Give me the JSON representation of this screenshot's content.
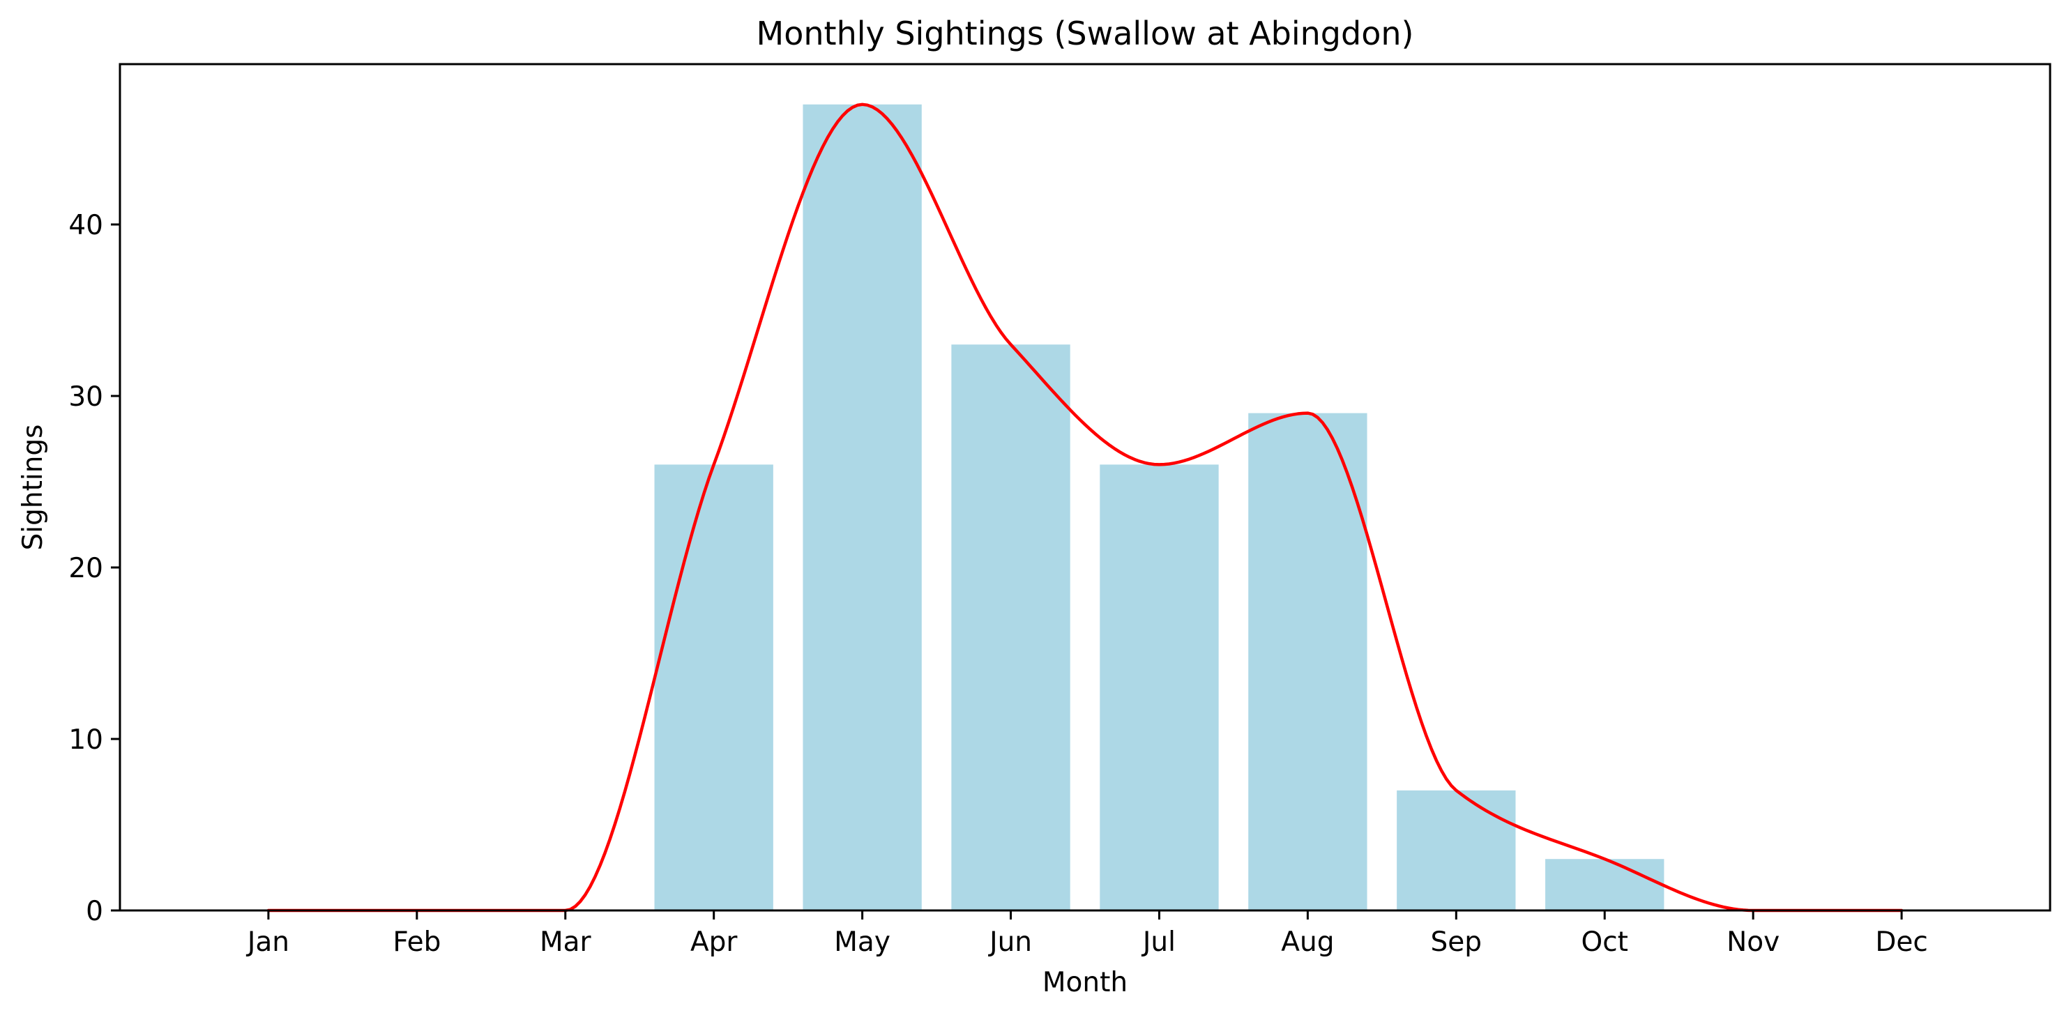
{
  "chart_data": {
    "type": "bar",
    "title": "Monthly Sightings (Swallow at Abingdon)",
    "xlabel": "Month",
    "ylabel": "Sightings",
    "categories": [
      "Jan",
      "Feb",
      "Mar",
      "Apr",
      "May",
      "Jun",
      "Jul",
      "Aug",
      "Sep",
      "Oct",
      "Nov",
      "Dec"
    ],
    "values": [
      0,
      0,
      0,
      26,
      47,
      33,
      26,
      29,
      7,
      3,
      0,
      0
    ],
    "ylim": [
      0,
      49.35
    ],
    "yticks": [
      0,
      10,
      20,
      30,
      40
    ],
    "grid": false,
    "legend": "none",
    "bar_color": "#add8e6",
    "overlay": {
      "type": "line",
      "style": "smoothed",
      "color": "#ff0000",
      "values": [
        0,
        0,
        0,
        26,
        47,
        33,
        26,
        29,
        7,
        3,
        0,
        0
      ]
    }
  }
}
